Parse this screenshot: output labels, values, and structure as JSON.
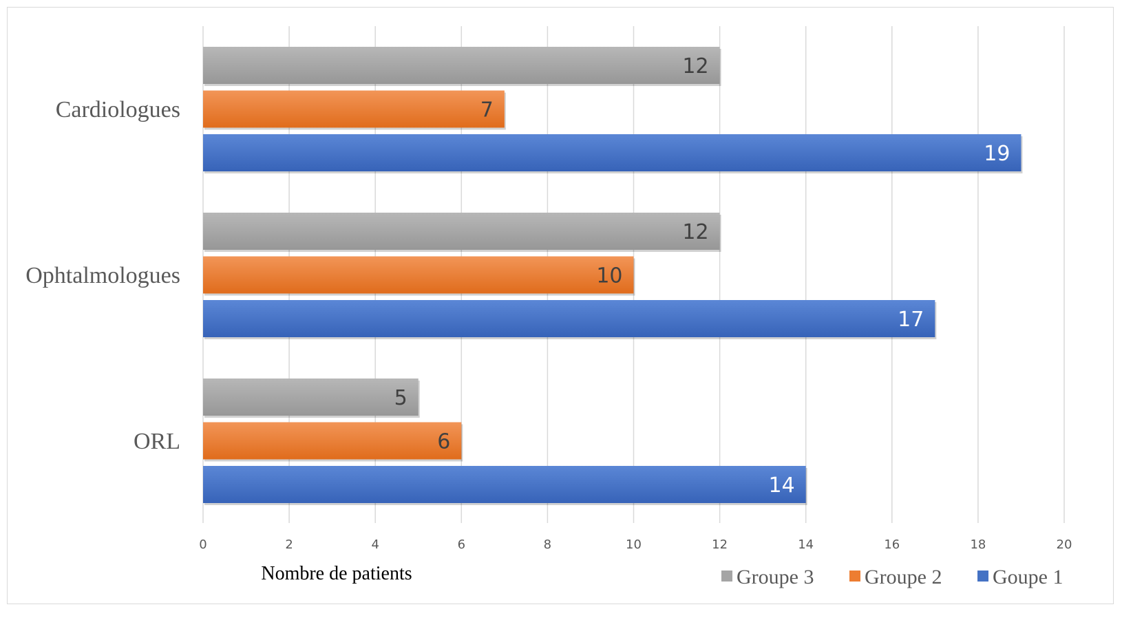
{
  "chart_data": {
    "type": "bar",
    "orientation": "horizontal",
    "title": "",
    "xlabel": "Nombre de patients",
    "ylabel": "",
    "xlim": [
      0,
      20
    ],
    "x_ticks": [
      0,
      2,
      4,
      6,
      8,
      10,
      12,
      14,
      16,
      18,
      20
    ],
    "grid": "vertical",
    "legend_position": "bottom-right",
    "categories": [
      "Cardiologues",
      "Ophtalmologues",
      "ORL"
    ],
    "series": [
      {
        "name": "Groupe 3",
        "color": "#a5a5a5",
        "values": [
          12,
          12,
          5
        ]
      },
      {
        "name": "Groupe 2",
        "color": "#ed7d31",
        "values": [
          7,
          10,
          6
        ]
      },
      {
        "name": "Goupe 1",
        "color": "#4472c4",
        "values": [
          19,
          17,
          14
        ]
      }
    ]
  }
}
